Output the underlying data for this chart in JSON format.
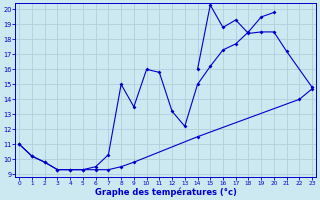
{
  "xlabel": "Graphe des températures (°c)",
  "bg_color": "#cce8f0",
  "line_color": "#0000cc",
  "grid_color": "#b0d0dc",
  "xmin": 0,
  "xmax": 23,
  "ymin": 9,
  "ymax": 20,
  "line1_x": [
    0,
    1,
    2,
    3,
    4,
    5,
    6,
    7,
    8,
    9,
    14,
    22,
    23
  ],
  "line1_y": [
    11,
    10.2,
    9.8,
    9.3,
    9.3,
    9.3,
    9.3,
    9.3,
    9.5,
    9.8,
    11.5,
    14.0,
    14.7
  ],
  "line2_x": [
    0,
    1,
    2,
    3,
    4,
    5,
    6,
    7,
    8,
    9,
    10,
    11,
    12,
    13,
    14,
    15,
    16,
    17,
    18,
    19,
    20
  ],
  "line2_y": [
    11,
    10.2,
    9.8,
    9.3,
    9.3,
    9.3,
    9.5,
    10.3,
    15.0,
    13.5,
    16.0,
    15.8,
    13.2,
    12.2,
    15.0,
    16.2,
    17.3,
    17.7,
    18.5,
    19.5,
    19.8
  ],
  "line3_x": [
    14,
    15,
    16,
    17,
    18,
    19,
    20,
    21,
    23
  ],
  "line3_y": [
    16.0,
    20.3,
    18.8,
    19.3,
    18.4,
    18.5,
    18.5,
    17.2,
    14.8
  ]
}
